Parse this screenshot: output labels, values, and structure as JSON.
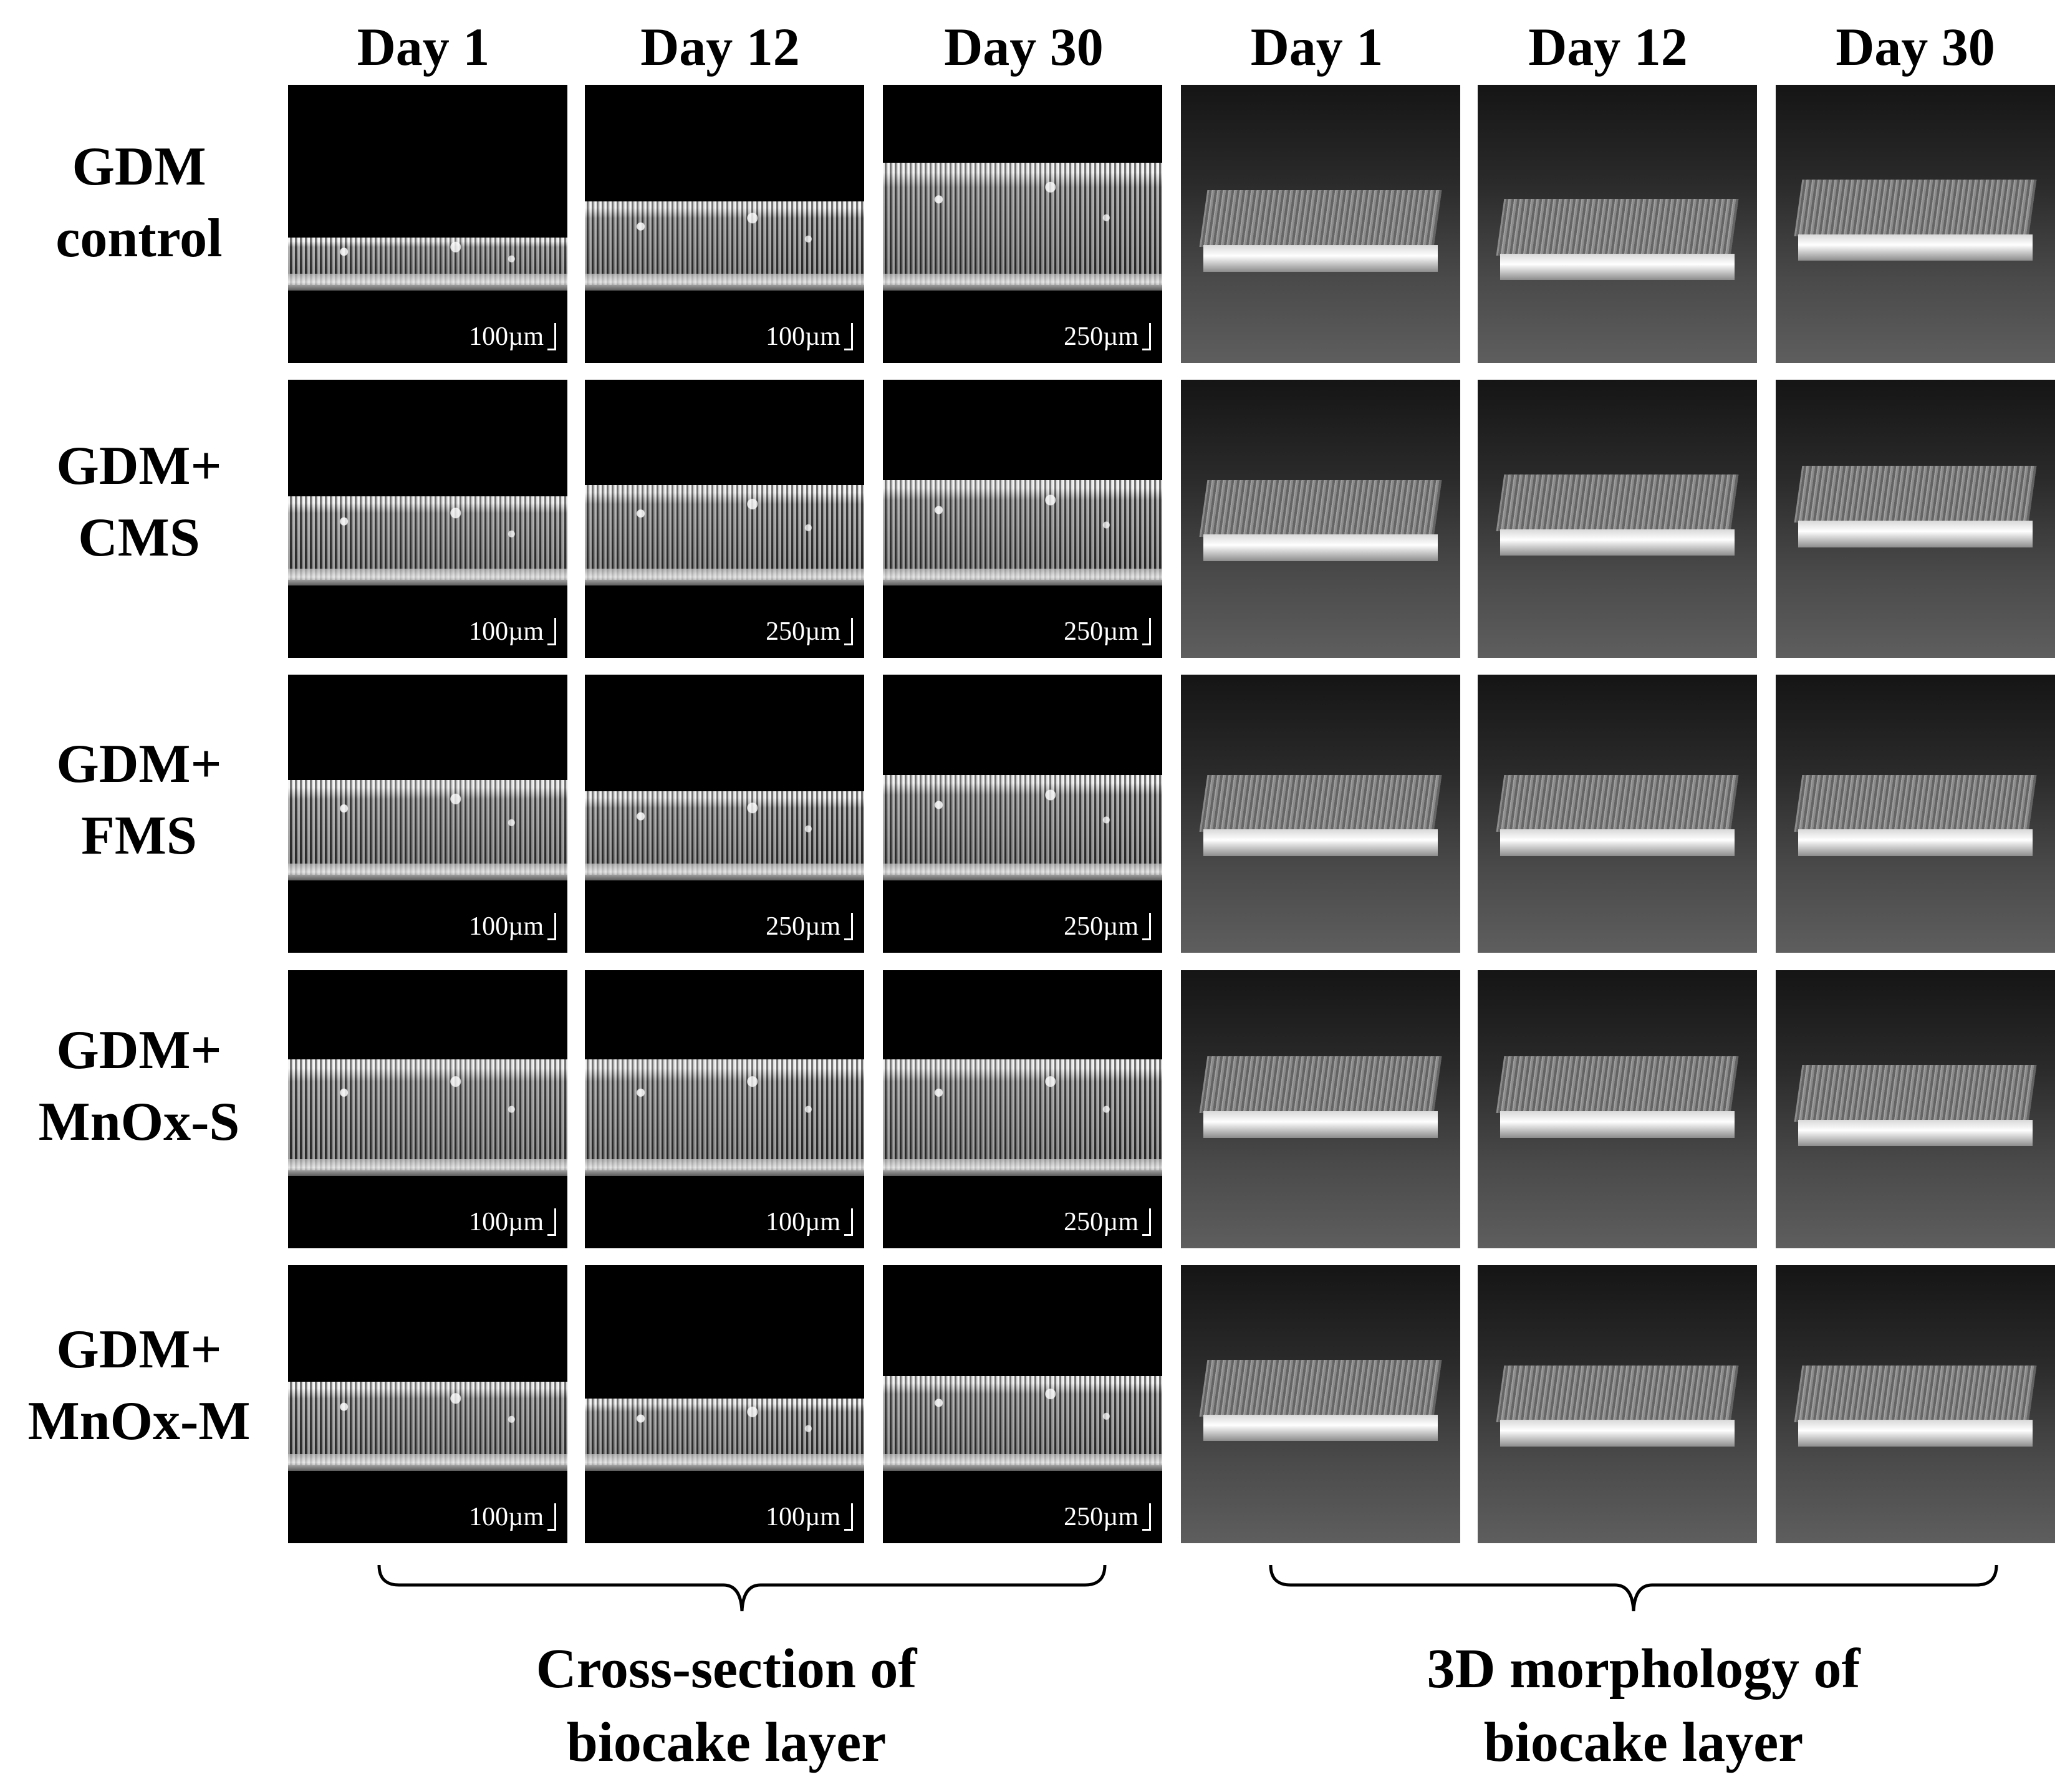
{
  "column_headers": [
    "Day 1",
    "Day 12",
    "Day 30",
    "Day 1",
    "Day 12",
    "Day 30"
  ],
  "rows": [
    {
      "label_line1": "GDM",
      "label_line2": "control",
      "scales": [
        "100µm",
        "100µm",
        "250µm"
      ]
    },
    {
      "label_line1": "GDM+",
      "label_line2": "CMS",
      "scales": [
        "100µm",
        "250µm",
        "250µm"
      ]
    },
    {
      "label_line1": "GDM+",
      "label_line2": "FMS",
      "scales": [
        "100µm",
        "250µm",
        "250µm"
      ]
    },
    {
      "label_line1": "GDM+",
      "label_line2": "MnOx-S",
      "scales": [
        "100µm",
        "100µm",
        "250µm"
      ]
    },
    {
      "label_line1": "GDM+",
      "label_line2": "MnOx-M",
      "scales": [
        "100µm",
        "100µm",
        "250µm"
      ]
    }
  ],
  "groups": [
    {
      "line1": "Cross-section of",
      "line2": "biocake layer"
    },
    {
      "line1": "3D morphology of",
      "line2": "biocake layer"
    }
  ],
  "colors": {
    "background": "#ffffff",
    "oct_background": "#000000",
    "text": "#000000"
  }
}
